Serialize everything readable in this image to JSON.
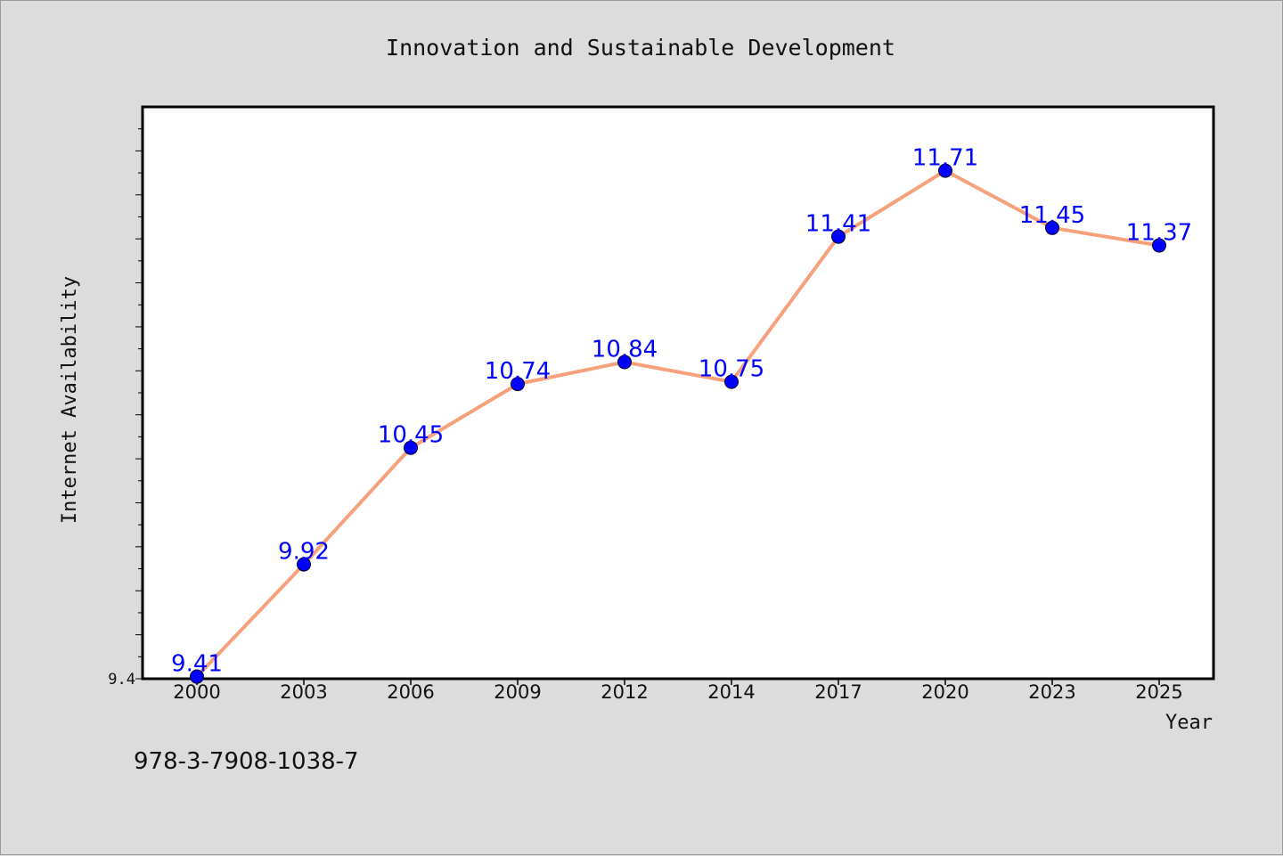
{
  "chart_data": {
    "type": "line",
    "title": "Innovation and Sustainable Development",
    "xlabel": "Year",
    "ylabel": "Internet Availability",
    "categories": [
      "2000",
      "2003",
      "2006",
      "2009",
      "2012",
      "2014",
      "2017",
      "2020",
      "2023",
      "2025"
    ],
    "series": [
      {
        "values": [
          9.41,
          9.92,
          10.45,
          10.74,
          10.84,
          10.75,
          11.41,
          11.71,
          11.45,
          11.37
        ],
        "line_color": "#f7a07c",
        "marker_color": "#0000ff"
      }
    ],
    "data_labels": [
      "9.41",
      "9.92",
      "10.45",
      "10.74",
      "10.84",
      "10.75",
      "11.41",
      "11.71",
      "11.45",
      "11.37"
    ],
    "y_tick_labels": [
      "9.4"
    ],
    "ylim": [
      9.4,
      12.0
    ],
    "grid": false,
    "legend": "none"
  },
  "footer_text": "978-3-7908-1038-7",
  "colors": {
    "background": "#dcdcdc",
    "plot_background": "#ffffff",
    "label_color": "#0000ff"
  }
}
